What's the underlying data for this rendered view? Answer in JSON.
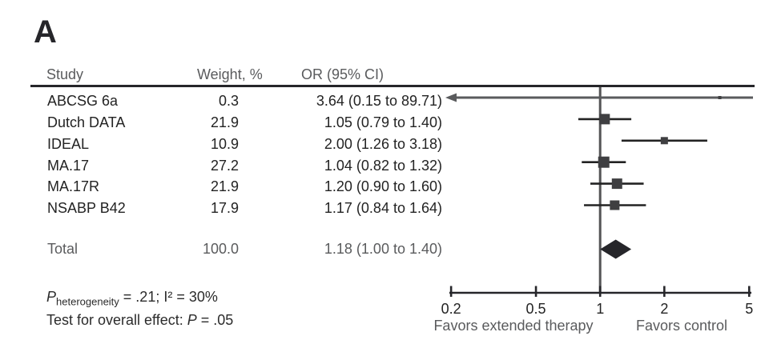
{
  "chart_data": {
    "type": "forest",
    "panel_label": "A",
    "columns": {
      "study": "Study",
      "weight": "Weight, %",
      "or": "OR (95% CI)"
    },
    "studies": [
      {
        "study": "ABCSG 6a",
        "weight": "0.3",
        "or_text": "3.64 (0.15 to 89.71)",
        "or": 3.64,
        "lo": 0.15,
        "hi": 89.71,
        "offscale_left": true,
        "offscale_right": true
      },
      {
        "study": "Dutch DATA",
        "weight": "21.9",
        "or_text": "1.05 (0.79 to 1.40)",
        "or": 1.05,
        "lo": 0.79,
        "hi": 1.4
      },
      {
        "study": "IDEAL",
        "weight": "10.9",
        "or_text": "2.00 (1.26 to 3.18)",
        "or": 2.0,
        "lo": 1.26,
        "hi": 3.18
      },
      {
        "study": "MA.17",
        "weight": "27.2",
        "or_text": "1.04 (0.82 to 1.32)",
        "or": 1.04,
        "lo": 0.82,
        "hi": 1.32
      },
      {
        "study": "MA.17R",
        "weight": "21.9",
        "or_text": "1.20 (0.90 to 1.60)",
        "or": 1.2,
        "lo": 0.9,
        "hi": 1.6
      },
      {
        "study": "NSABP B42",
        "weight": "17.9",
        "or_text": "1.17 (0.84 to 1.64)",
        "or": 1.17,
        "lo": 0.84,
        "hi": 1.64
      }
    ],
    "total": {
      "study": "Total",
      "weight": "100.0",
      "or_text": "1.18 (1.00 to 1.40)",
      "or": 1.18,
      "lo": 1.0,
      "hi": 1.4
    },
    "axis": {
      "scale": "log",
      "xlim": [
        0.2,
        5
      ],
      "ticks": [
        0.2,
        0.5,
        1,
        2,
        5
      ],
      "tick_labels": [
        "0.2",
        "0.5",
        "1",
        "2",
        "5"
      ],
      "ref_line": 1
    },
    "axis_labels": {
      "left": "Favors extended therapy",
      "right": "Favors control"
    },
    "footnotes": {
      "line1": {
        "p": "P",
        "sub": "heterogeneity",
        "rest": " = .21; I² = 30%"
      },
      "line2": {
        "pre": "Test for overall effect: ",
        "p": "P",
        "rest": " = .05"
      }
    },
    "colors": {
      "black": "#26262a",
      "gray": "#5a5b5d",
      "square": "#3f3f41",
      "diamond": "#26262a"
    }
  }
}
